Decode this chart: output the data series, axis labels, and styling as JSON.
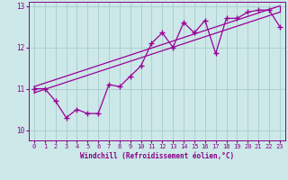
{
  "xlabel": "Windchill (Refroidissement éolien,°C)",
  "ylabel": "",
  "bg_color": "#cce8e8",
  "line_color": "#990099",
  "grid_color": "#aacccc",
  "xlim": [
    -0.5,
    23.5
  ],
  "ylim": [
    9.75,
    13.1
  ],
  "xticks": [
    0,
    1,
    2,
    3,
    4,
    5,
    6,
    7,
    8,
    9,
    10,
    11,
    12,
    13,
    14,
    15,
    16,
    17,
    18,
    19,
    20,
    21,
    22,
    23
  ],
  "yticks": [
    10,
    11,
    12,
    13
  ],
  "data_x": [
    0,
    1,
    2,
    3,
    4,
    5,
    6,
    7,
    8,
    9,
    10,
    11,
    12,
    13,
    14,
    15,
    16,
    17,
    18,
    19,
    20,
    21,
    22,
    23
  ],
  "data_y": [
    11.0,
    11.0,
    10.7,
    10.3,
    10.5,
    10.4,
    10.4,
    11.1,
    11.05,
    11.3,
    11.55,
    12.1,
    12.35,
    12.0,
    12.6,
    12.35,
    12.65,
    11.85,
    12.7,
    12.7,
    12.85,
    12.9,
    12.9,
    12.5
  ],
  "reg_line_bot": {
    "x0": 0,
    "y0": 10.9,
    "x1": 23,
    "y1": 12.85
  },
  "reg_line_top": {
    "x0": 0,
    "y0": 11.05,
    "x1": 23,
    "y1": 13.0
  },
  "font_color": "#880088",
  "font_family": "monospace",
  "tick_fontsize": 5.0,
  "xlabel_fontsize": 5.5
}
